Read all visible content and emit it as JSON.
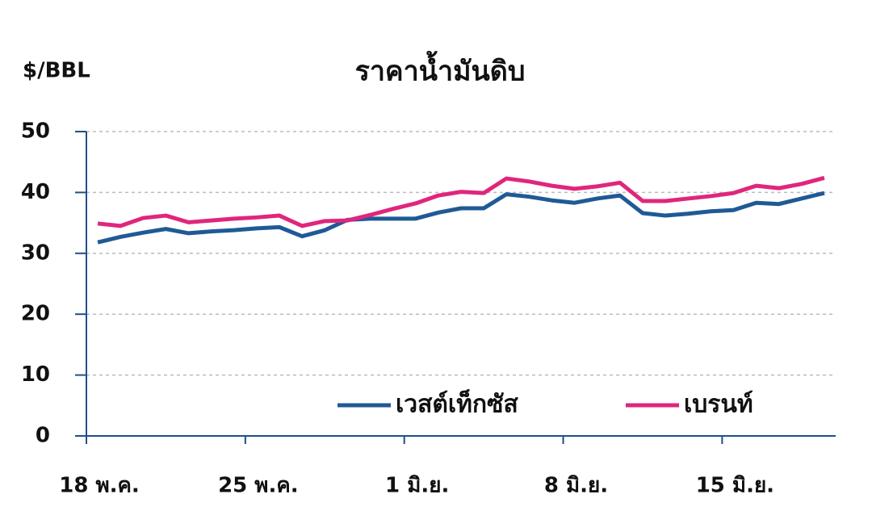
{
  "chart_data": {
    "type": "line",
    "title": "ราคาน้ำมันดิบ",
    "y_label": "$/BBL",
    "categories": [
      "18 พ.ค.",
      null,
      null,
      null,
      null,
      null,
      null,
      "25 พ.ค.",
      null,
      null,
      null,
      null,
      null,
      null,
      "1 มิ.ย.",
      null,
      null,
      null,
      null,
      null,
      null,
      "8 มิ.ย.",
      null,
      null,
      null,
      null,
      null,
      null,
      "15 มิ.ย.",
      null,
      null,
      null,
      null
    ],
    "series": [
      {
        "name": "เวสต์เท็กซัส",
        "color": "#1f5a96",
        "values": [
          31.8,
          32.7,
          33.4,
          34.0,
          33.3,
          33.6,
          33.8,
          34.1,
          34.3,
          32.8,
          33.8,
          35.5,
          35.7,
          35.7,
          35.7,
          36.7,
          37.4,
          37.4,
          39.7,
          39.3,
          38.7,
          38.3,
          39.0,
          39.5,
          36.6,
          36.2,
          36.5,
          36.9,
          37.1,
          38.3,
          38.1,
          39.0,
          39.9
        ]
      },
      {
        "name": "เบรนท์",
        "color": "#e0267c",
        "values": [
          34.9,
          34.5,
          35.8,
          36.2,
          35.1,
          35.4,
          35.7,
          35.9,
          36.2,
          34.5,
          35.3,
          35.4,
          36.3,
          37.3,
          38.2,
          39.5,
          40.1,
          39.9,
          42.3,
          41.8,
          41.1,
          40.6,
          41.0,
          41.6,
          38.6,
          38.6,
          39.0,
          39.4,
          39.9,
          41.1,
          40.7,
          41.4,
          42.4
        ]
      }
    ],
    "ylim": [
      0,
      50
    ],
    "yticks": [
      0,
      10,
      20,
      30,
      40,
      50
    ],
    "grid": true,
    "legend": "bottom-right"
  }
}
